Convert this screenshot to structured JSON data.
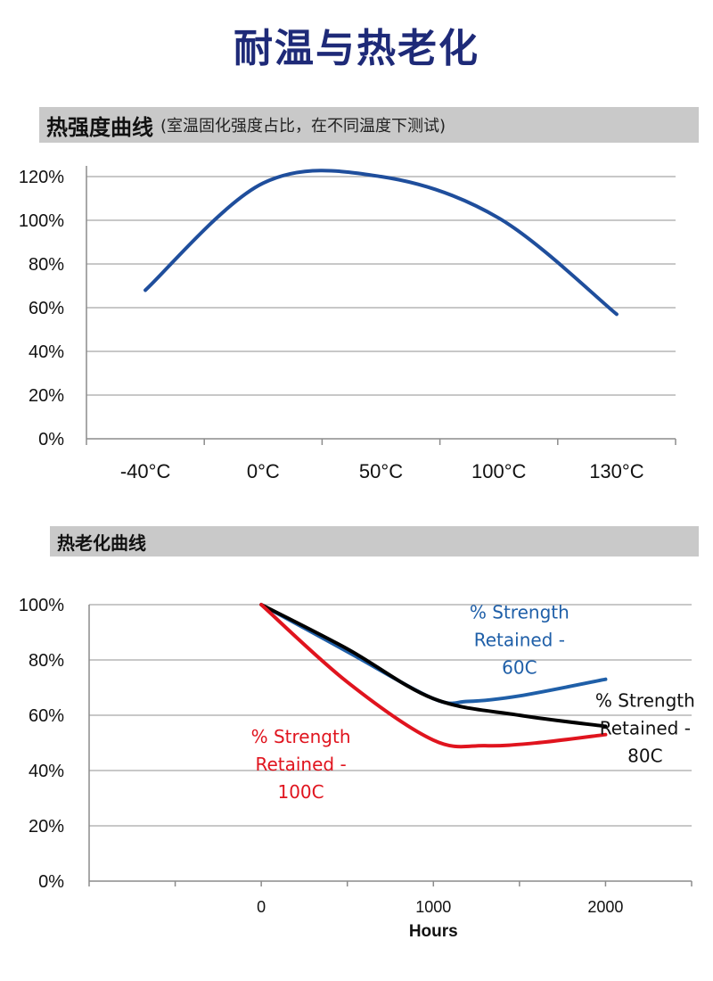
{
  "page": {
    "title": "耐温与热老化",
    "section1": {
      "title": "热强度曲线",
      "subtitle": "(室温固化强度占比，在不同温度下测试)"
    },
    "section2": {
      "title": "热老化曲线",
      "subtitle": ""
    }
  },
  "chart_data": [
    {
      "type": "line",
      "title": "热强度曲线",
      "subtitle": "(室温固化强度占比，在不同温度下测试)",
      "categories": [
        "-40°C",
        "0°C",
        "50°C",
        "100°C",
        "130°C"
      ],
      "y_ticks": [
        "0%",
        "20%",
        "40%",
        "60%",
        "80%",
        "100%",
        "120%"
      ],
      "ylim": [
        0,
        120
      ],
      "grid": true,
      "series": [
        {
          "color": "#1f4e9c",
          "values": [
            68,
            117,
            120,
            101,
            57
          ]
        }
      ]
    },
    {
      "type": "line",
      "title": "热老化曲线",
      "xlabel": "Hours",
      "x_ticks": [
        "0",
        "1000",
        "2000"
      ],
      "xlim": [
        -1000,
        2500
      ],
      "y_ticks": [
        "0%",
        "20%",
        "40%",
        "60%",
        "80%",
        "100%"
      ],
      "ylim": [
        0,
        100
      ],
      "grid": true,
      "series": [
        {
          "name": "% Strength Retained - 60C",
          "color": "#1f5fa8",
          "points": [
            [
              0,
              100
            ],
            [
              500,
              83
            ],
            [
              1000,
              66
            ],
            [
              1200,
              65
            ],
            [
              1500,
              67
            ],
            [
              2000,
              73
            ]
          ]
        },
        {
          "name": "% Strength Retained - 80C",
          "color": "#000000",
          "points": [
            [
              0,
              100
            ],
            [
              500,
              84
            ],
            [
              1000,
              66
            ],
            [
              1500,
              60
            ],
            [
              2000,
              56
            ]
          ]
        },
        {
          "name": "% Strength Retained - 100C",
          "color": "#e0141e",
          "points": [
            [
              0,
              100
            ],
            [
              500,
              72
            ],
            [
              1000,
              51
            ],
            [
              1300,
              49
            ],
            [
              1600,
              50
            ],
            [
              2000,
              53
            ]
          ]
        }
      ],
      "labels": [
        {
          "lines": [
            "% Strength",
            "Retained -",
            "60C"
          ],
          "color": "#1f5fa8",
          "anchor": [
            1500,
            95
          ]
        },
        {
          "lines": [
            "% Strength",
            "Retained -",
            "80C"
          ],
          "color": "#111111",
          "anchor": [
            2230,
            63
          ]
        },
        {
          "lines": [
            "% Strength",
            "Retained -",
            "100C"
          ],
          "color": "#e0141e",
          "anchor": [
            230,
            50
          ]
        }
      ]
    }
  ]
}
